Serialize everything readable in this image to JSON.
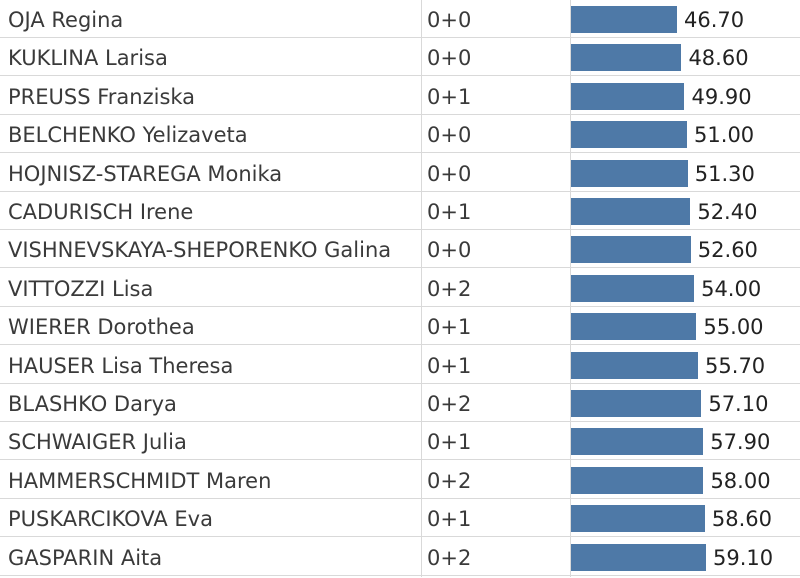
{
  "chart_data": {
    "type": "bar",
    "orientation": "horizontal",
    "bar_color": "#4e79a7",
    "categories": [
      "OJA Regina",
      "KUKLINA Larisa",
      "PREUSS Franziska",
      "BELCHENKO Yelizaveta",
      "HOJNISZ-STAREGA Monika",
      "CADURISCH Irene",
      "VISHNEVSKAYA-SHEPORENKO Galina",
      "VITTOZZI Lisa",
      "WIERER Dorothea",
      "HAUSER Lisa Theresa",
      "BLASHKO Darya",
      "SCHWAIGER Julia",
      "HAMMERSCHMIDT Maren",
      "PUSKARCIKOVA Eva",
      "GASPARIN Aita"
    ],
    "shooting": [
      "0+0",
      "0+0",
      "0+1",
      "0+0",
      "0+0",
      "0+1",
      "0+0",
      "0+2",
      "0+1",
      "0+1",
      "0+2",
      "0+1",
      "0+2",
      "0+1",
      "0+2"
    ],
    "values": [
      46.7,
      48.6,
      49.9,
      51.0,
      51.3,
      52.4,
      52.6,
      54.0,
      55.0,
      55.7,
      57.1,
      57.9,
      58.0,
      58.6,
      59.1
    ],
    "value_labels": [
      "46.70",
      "48.60",
      "49.90",
      "51.00",
      "51.30",
      "52.40",
      "52.60",
      "54.00",
      "55.00",
      "55.70",
      "57.10",
      "57.90",
      "58.00",
      "58.60",
      "59.10"
    ],
    "xlim": [
      0,
      59.1
    ]
  }
}
